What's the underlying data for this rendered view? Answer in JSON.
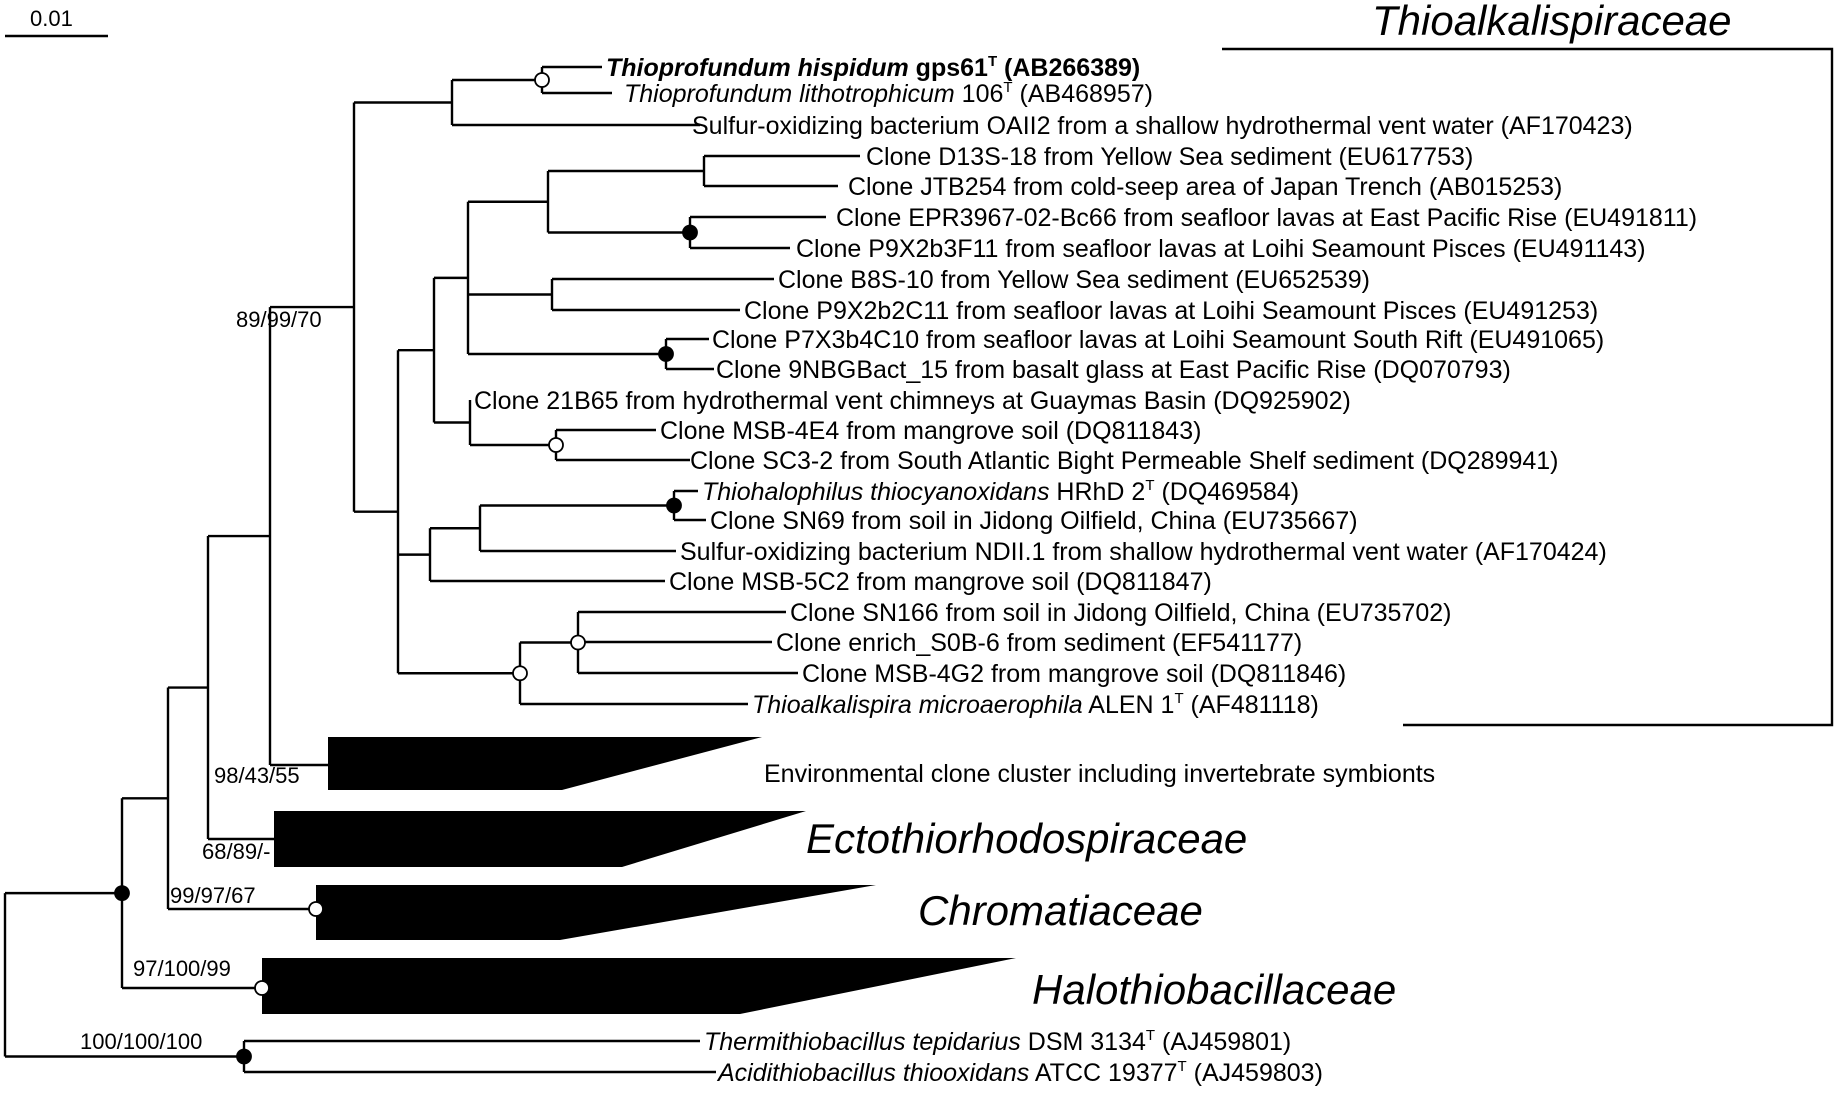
{
  "scale_bar": {
    "label": "0.01"
  },
  "families": {
    "thioalkalispiraceae": "Thioalkalispiraceae",
    "ectothiorhodospiraceae": "Ectothiorhodospiraceae",
    "chromatiaceae": "Chromatiaceae",
    "halothiobacillaceae": "Halothiobacillaceae"
  },
  "clusters": {
    "environmental": "Environmental clone cluster including invertebrate symbionts"
  },
  "bootstrap": {
    "b1": "89/99/70",
    "b2": "98/43/55",
    "b3": "68/89/-",
    "b4": "99/97/67",
    "b5": "97/100/99",
    "b6": "100/100/100"
  },
  "taxa": [
    {
      "italic": "Thioprofundum hispidum",
      "plain": " gps61",
      "sup": "T",
      "rest": " (AB266389)",
      "bold": true
    },
    {
      "italic": "Thioprofundum lithotrophicum",
      "plain": " 106",
      "sup": "T",
      "rest": " (AB468957)"
    },
    {
      "plain": "Sulfur-oxidizing bacterium OAII2 from a shallow hydrothermal vent water (AF170423)"
    },
    {
      "plain": "Clone D13S-18 from Yellow Sea sediment (EU617753)"
    },
    {
      "plain": "Clone JTB254 from cold-seep area of Japan Trench (AB015253)"
    },
    {
      "plain": "Clone EPR3967-02-Bc66 from seafloor lavas at East Pacific Rise (EU491811)"
    },
    {
      "plain": "Clone P9X2b3F11 from seafloor lavas at Loihi Seamount Pisces (EU491143)"
    },
    {
      "plain": "Clone B8S-10 from Yellow Sea sediment (EU652539)"
    },
    {
      "plain": "Clone P9X2b2C11 from seafloor lavas at Loihi Seamount Pisces (EU491253)"
    },
    {
      "plain": "Clone P7X3b4C10 from seafloor lavas at Loihi Seamount South Rift (EU491065)"
    },
    {
      "plain": "Clone 9NBGBact_15 from basalt glass at East Pacific Rise (DQ070793)"
    },
    {
      "plain": "Clone 21B65 from hydrothermal vent chimneys at Guaymas Basin (DQ925902)"
    },
    {
      "plain": "Clone MSB-4E4 from mangrove soil (DQ811843)"
    },
    {
      "plain": "Clone SC3-2 from South Atlantic Bight Permeable Shelf sediment (DQ289941)"
    },
    {
      "italic": "Thiohalophilus thiocyanoxidans",
      "plain": " HRhD 2",
      "sup": "T",
      "rest": " (DQ469584)"
    },
    {
      "plain": "Clone SN69 from soil in Jidong Oilfield, China (EU735667)"
    },
    {
      "plain": "Sulfur-oxidizing bacterium NDII.1 from shallow hydrothermal vent water (AF170424)"
    },
    {
      "plain": "Clone MSB-5C2 from mangrove soil (DQ811847)"
    },
    {
      "plain": "Clone SN166 from soil in Jidong Oilfield, China (EU735702)"
    },
    {
      "plain": "Clone enrich_S0B-6 from sediment (EF541177)"
    },
    {
      "plain": "Clone MSB-4G2 from mangrove soil (DQ811846)"
    },
    {
      "italic": "Thioalkalispira microaerophila",
      "plain": " ALEN 1",
      "sup": "T",
      "rest": " (AF481118)"
    },
    {
      "italic": "Thermithiobacillus tepidarius",
      "plain": " DSM 3134",
      "sup": "T",
      "rest": " (AJ459801)"
    },
    {
      "italic": "Acidithiobacillus thiooxidans",
      "plain": " ATCC 19377",
      "sup": "T",
      "rest": " (AJ459803)"
    }
  ]
}
